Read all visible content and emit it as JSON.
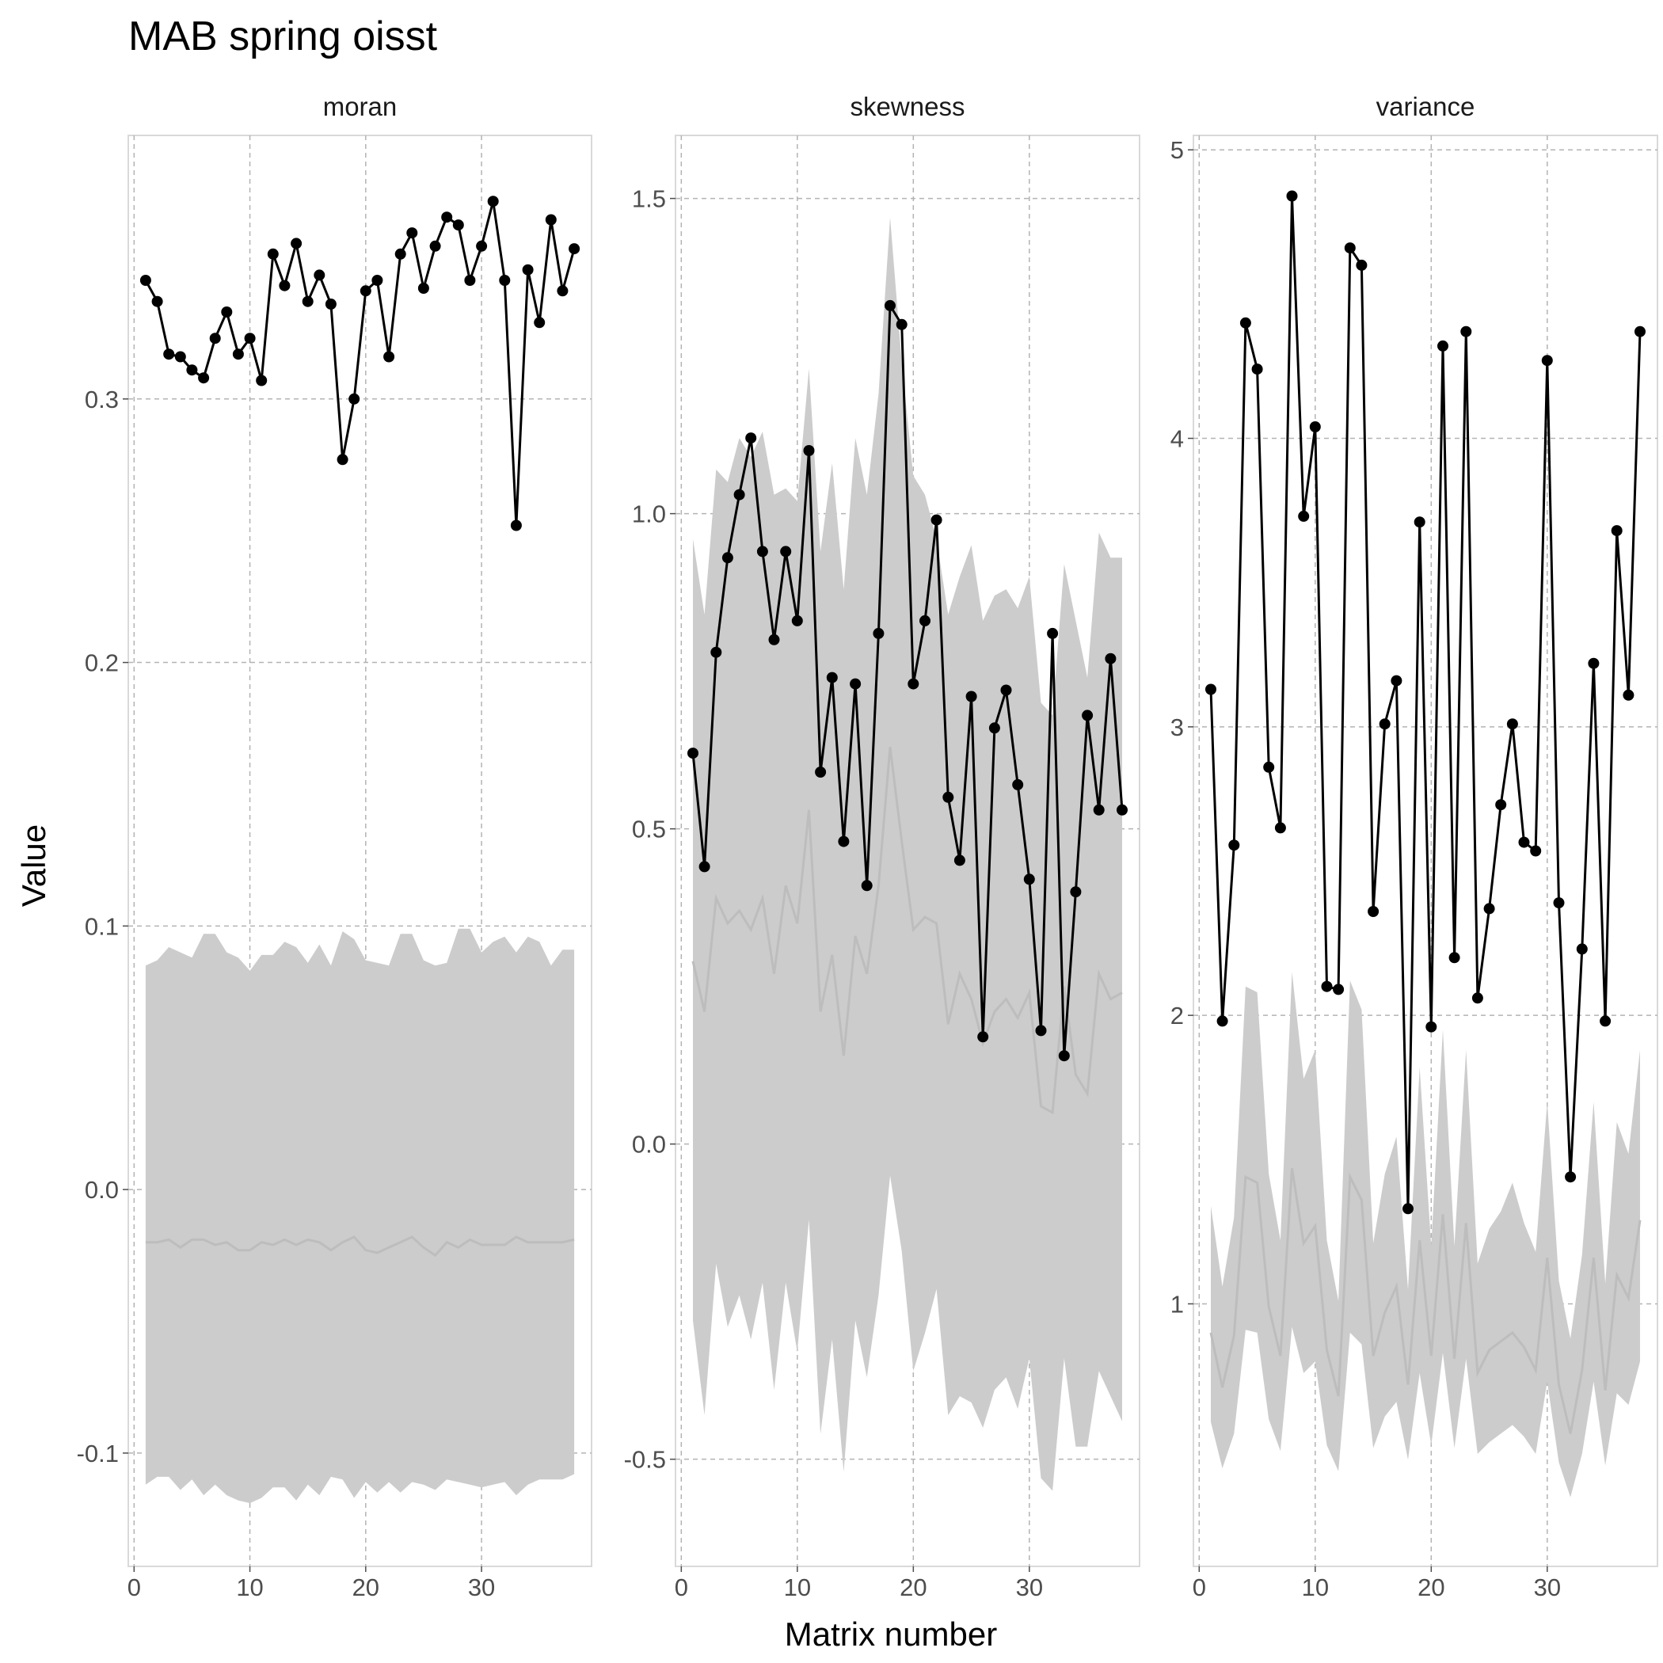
{
  "chart_data": {
    "type": "line",
    "title": "MAB spring oisst",
    "xlabel": "Matrix number",
    "ylabel": "Value",
    "x": [
      1,
      2,
      3,
      4,
      5,
      6,
      7,
      8,
      9,
      10,
      11,
      12,
      13,
      14,
      15,
      16,
      17,
      18,
      19,
      20,
      21,
      22,
      23,
      24,
      25,
      26,
      27,
      28,
      29,
      30,
      31,
      32,
      33,
      34,
      35,
      36,
      37,
      38
    ],
    "grid": true,
    "facets": [
      {
        "name": "moran",
        "xlim": [
          -0.5,
          39.5
        ],
        "ylim": [
          -0.143,
          0.4
        ],
        "x_ticks": [
          0,
          10,
          20,
          30
        ],
        "y_ticks": [
          -0.1,
          0.0,
          0.1,
          0.2,
          0.3
        ],
        "y_tick_labels": [
          "-0.1",
          "0.0",
          "0.1",
          "0.2",
          "0.3"
        ],
        "observed": [
          0.345,
          0.337,
          0.317,
          0.316,
          0.311,
          0.308,
          0.323,
          0.333,
          0.317,
          0.323,
          0.307,
          0.355,
          0.343,
          0.359,
          0.337,
          0.347,
          0.336,
          0.277,
          0.3,
          0.341,
          0.345,
          0.316,
          0.355,
          0.363,
          0.342,
          0.358,
          0.369,
          0.366,
          0.345,
          0.358,
          0.375,
          0.345,
          0.252,
          0.349,
          0.329,
          0.368,
          0.341,
          0.357
        ],
        "null_median": [
          -0.02,
          -0.02,
          -0.019,
          -0.022,
          -0.019,
          -0.019,
          -0.021,
          -0.02,
          -0.023,
          -0.023,
          -0.02,
          -0.021,
          -0.019,
          -0.021,
          -0.019,
          -0.02,
          -0.023,
          -0.02,
          -0.018,
          -0.023,
          -0.024,
          -0.022,
          -0.02,
          -0.018,
          -0.022,
          -0.025,
          -0.02,
          -0.022,
          -0.019,
          -0.021,
          -0.021,
          -0.021,
          -0.018,
          -0.02,
          -0.02,
          -0.02,
          -0.02,
          -0.019
        ],
        "null_upper": [
          0.085,
          0.087,
          0.092,
          0.09,
          0.088,
          0.097,
          0.097,
          0.09,
          0.088,
          0.083,
          0.089,
          0.089,
          0.094,
          0.092,
          0.086,
          0.093,
          0.085,
          0.098,
          0.095,
          0.087,
          0.086,
          0.085,
          0.097,
          0.097,
          0.087,
          0.085,
          0.086,
          0.099,
          0.099,
          0.09,
          0.094,
          0.096,
          0.09,
          0.096,
          0.094,
          0.085,
          0.091,
          0.091
        ],
        "null_lower": [
          -0.112,
          -0.109,
          -0.109,
          -0.114,
          -0.11,
          -0.116,
          -0.112,
          -0.116,
          -0.118,
          -0.119,
          -0.117,
          -0.113,
          -0.113,
          -0.118,
          -0.112,
          -0.116,
          -0.109,
          -0.11,
          -0.117,
          -0.111,
          -0.115,
          -0.111,
          -0.115,
          -0.111,
          -0.112,
          -0.114,
          -0.11,
          -0.111,
          -0.112,
          -0.113,
          -0.112,
          -0.111,
          -0.116,
          -0.112,
          -0.11,
          -0.11,
          -0.11,
          -0.108
        ]
      },
      {
        "name": "skewness",
        "xlim": [
          -0.5,
          39.5
        ],
        "ylim": [
          -0.67,
          1.6
        ],
        "x_ticks": [
          0,
          10,
          20,
          30
        ],
        "y_ticks": [
          -0.5,
          0.0,
          0.5,
          1.0,
          1.5
        ],
        "y_tick_labels": [
          "-0.5",
          "0.0",
          "0.5",
          "1.0",
          "1.5"
        ],
        "observed": [
          0.62,
          0.44,
          0.78,
          0.93,
          1.03,
          1.12,
          0.94,
          0.8,
          0.94,
          0.83,
          1.1,
          0.59,
          0.74,
          0.48,
          0.73,
          0.41,
          0.81,
          1.33,
          1.3,
          0.73,
          0.83,
          0.99,
          0.55,
          0.45,
          0.71,
          0.17,
          0.66,
          0.72,
          0.57,
          0.42,
          0.18,
          0.81,
          0.14,
          0.4,
          0.68,
          0.53,
          0.77,
          0.53
        ],
        "null_median": [
          0.29,
          0.21,
          0.39,
          0.35,
          0.37,
          0.34,
          0.39,
          0.27,
          0.41,
          0.35,
          0.53,
          0.21,
          0.3,
          0.14,
          0.33,
          0.27,
          0.41,
          0.63,
          0.48,
          0.34,
          0.36,
          0.35,
          0.19,
          0.27,
          0.23,
          0.16,
          0.21,
          0.23,
          0.2,
          0.24,
          0.06,
          0.05,
          0.25,
          0.11,
          0.08,
          0.27,
          0.23,
          0.24
        ],
        "null_upper": [
          0.96,
          0.84,
          1.07,
          1.05,
          1.12,
          1.09,
          1.13,
          1.03,
          1.04,
          1.02,
          1.23,
          0.94,
          1.08,
          0.88,
          1.12,
          1.03,
          1.19,
          1.47,
          1.24,
          1.06,
          1.03,
          0.96,
          0.84,
          0.9,
          0.95,
          0.83,
          0.87,
          0.88,
          0.85,
          0.9,
          0.7,
          0.68,
          0.92,
          0.83,
          0.74,
          0.97,
          0.93,
          0.93
        ],
        "null_lower": [
          -0.28,
          -0.43,
          -0.19,
          -0.29,
          -0.24,
          -0.31,
          -0.22,
          -0.39,
          -0.22,
          -0.33,
          -0.12,
          -0.46,
          -0.31,
          -0.52,
          -0.28,
          -0.37,
          -0.24,
          -0.05,
          -0.17,
          -0.36,
          -0.3,
          -0.23,
          -0.43,
          -0.4,
          -0.41,
          -0.45,
          -0.39,
          -0.37,
          -0.42,
          -0.34,
          -0.53,
          -0.55,
          -0.34,
          -0.48,
          -0.48,
          -0.36,
          -0.4,
          -0.44
        ]
      },
      {
        "name": "variance",
        "xlim": [
          -0.5,
          39.5
        ],
        "ylim": [
          0.09,
          5.05
        ],
        "x_ticks": [
          0,
          10,
          20,
          30
        ],
        "y_ticks": [
          1,
          2,
          3,
          4,
          5
        ],
        "y_tick_labels": [
          "1",
          "2",
          "3",
          "4",
          "5"
        ],
        "observed": [
          3.13,
          1.98,
          2.59,
          4.4,
          4.24,
          2.86,
          2.65,
          4.84,
          3.73,
          4.04,
          2.1,
          2.09,
          4.66,
          4.6,
          2.36,
          3.01,
          3.16,
          1.33,
          3.71,
          1.96,
          4.32,
          2.2,
          4.37,
          2.06,
          2.37,
          2.73,
          3.01,
          2.6,
          2.57,
          4.27,
          2.39,
          1.44,
          2.23,
          3.22,
          1.98,
          3.68,
          3.11,
          4.37
        ],
        "null_median": [
          0.9,
          0.71,
          0.89,
          1.44,
          1.42,
          0.99,
          0.82,
          1.47,
          1.21,
          1.27,
          0.84,
          0.68,
          1.44,
          1.36,
          0.82,
          0.97,
          1.06,
          0.72,
          1.22,
          0.82,
          1.31,
          0.81,
          1.28,
          0.76,
          0.84,
          0.87,
          0.9,
          0.85,
          0.77,
          1.16,
          0.72,
          0.55,
          0.77,
          1.16,
          0.7,
          1.1,
          1.02,
          1.29
        ],
        "null_upper": [
          1.34,
          1.06,
          1.3,
          2.1,
          2.08,
          1.45,
          1.22,
          2.15,
          1.78,
          1.88,
          1.22,
          1.01,
          2.12,
          2.02,
          1.21,
          1.45,
          1.58,
          1.05,
          1.82,
          1.2,
          1.95,
          1.2,
          1.88,
          1.14,
          1.26,
          1.32,
          1.42,
          1.28,
          1.18,
          1.7,
          1.08,
          0.88,
          1.17,
          1.7,
          1.07,
          1.63,
          1.52,
          1.88
        ],
        "null_lower": [
          0.59,
          0.43,
          0.55,
          0.91,
          0.9,
          0.6,
          0.49,
          0.92,
          0.76,
          0.8,
          0.51,
          0.42,
          0.9,
          0.86,
          0.5,
          0.61,
          0.66,
          0.46,
          0.76,
          0.51,
          0.83,
          0.5,
          0.81,
          0.48,
          0.52,
          0.55,
          0.58,
          0.54,
          0.48,
          0.73,
          0.45,
          0.33,
          0.48,
          0.73,
          0.44,
          0.69,
          0.65,
          0.8
        ]
      }
    ]
  }
}
